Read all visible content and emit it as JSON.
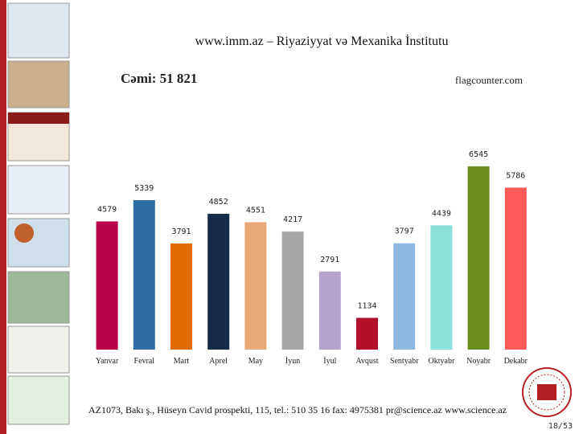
{
  "chart_data": {
    "type": "bar",
    "title": "www.imm.az – Riyaziyyat və Mexanika İnstitutu",
    "subtitle": "Cəmi: 51 821",
    "source": "flagcounter.com",
    "categories": [
      "Yanvar",
      "Fevral",
      "Mart",
      "Aprel",
      "May",
      "İyun",
      "İyul",
      "Avqust",
      "Sentyabr",
      "Oktyabr",
      "Noyabr",
      "Dekabr"
    ],
    "values": [
      4579,
      5339,
      3791,
      4852,
      4551,
      4217,
      2791,
      1134,
      3797,
      4439,
      6545,
      5786
    ],
    "colors": [
      "#b8004c",
      "#2e6da4",
      "#e06c00",
      "#152b47",
      "#e8a878",
      "#a6a6a6",
      "#b5a5cc",
      "#b0102a",
      "#8db8e0",
      "#88e0d8",
      "#6b8e23",
      "#ff5a5a"
    ]
  },
  "footer": "AZ1073, Bakı ş., Hüseyn Cavid prospekti, 115, tel.: 510 35 16  fax: 4975381  pr@science.az  www.science.az",
  "page_number": "18/53"
}
